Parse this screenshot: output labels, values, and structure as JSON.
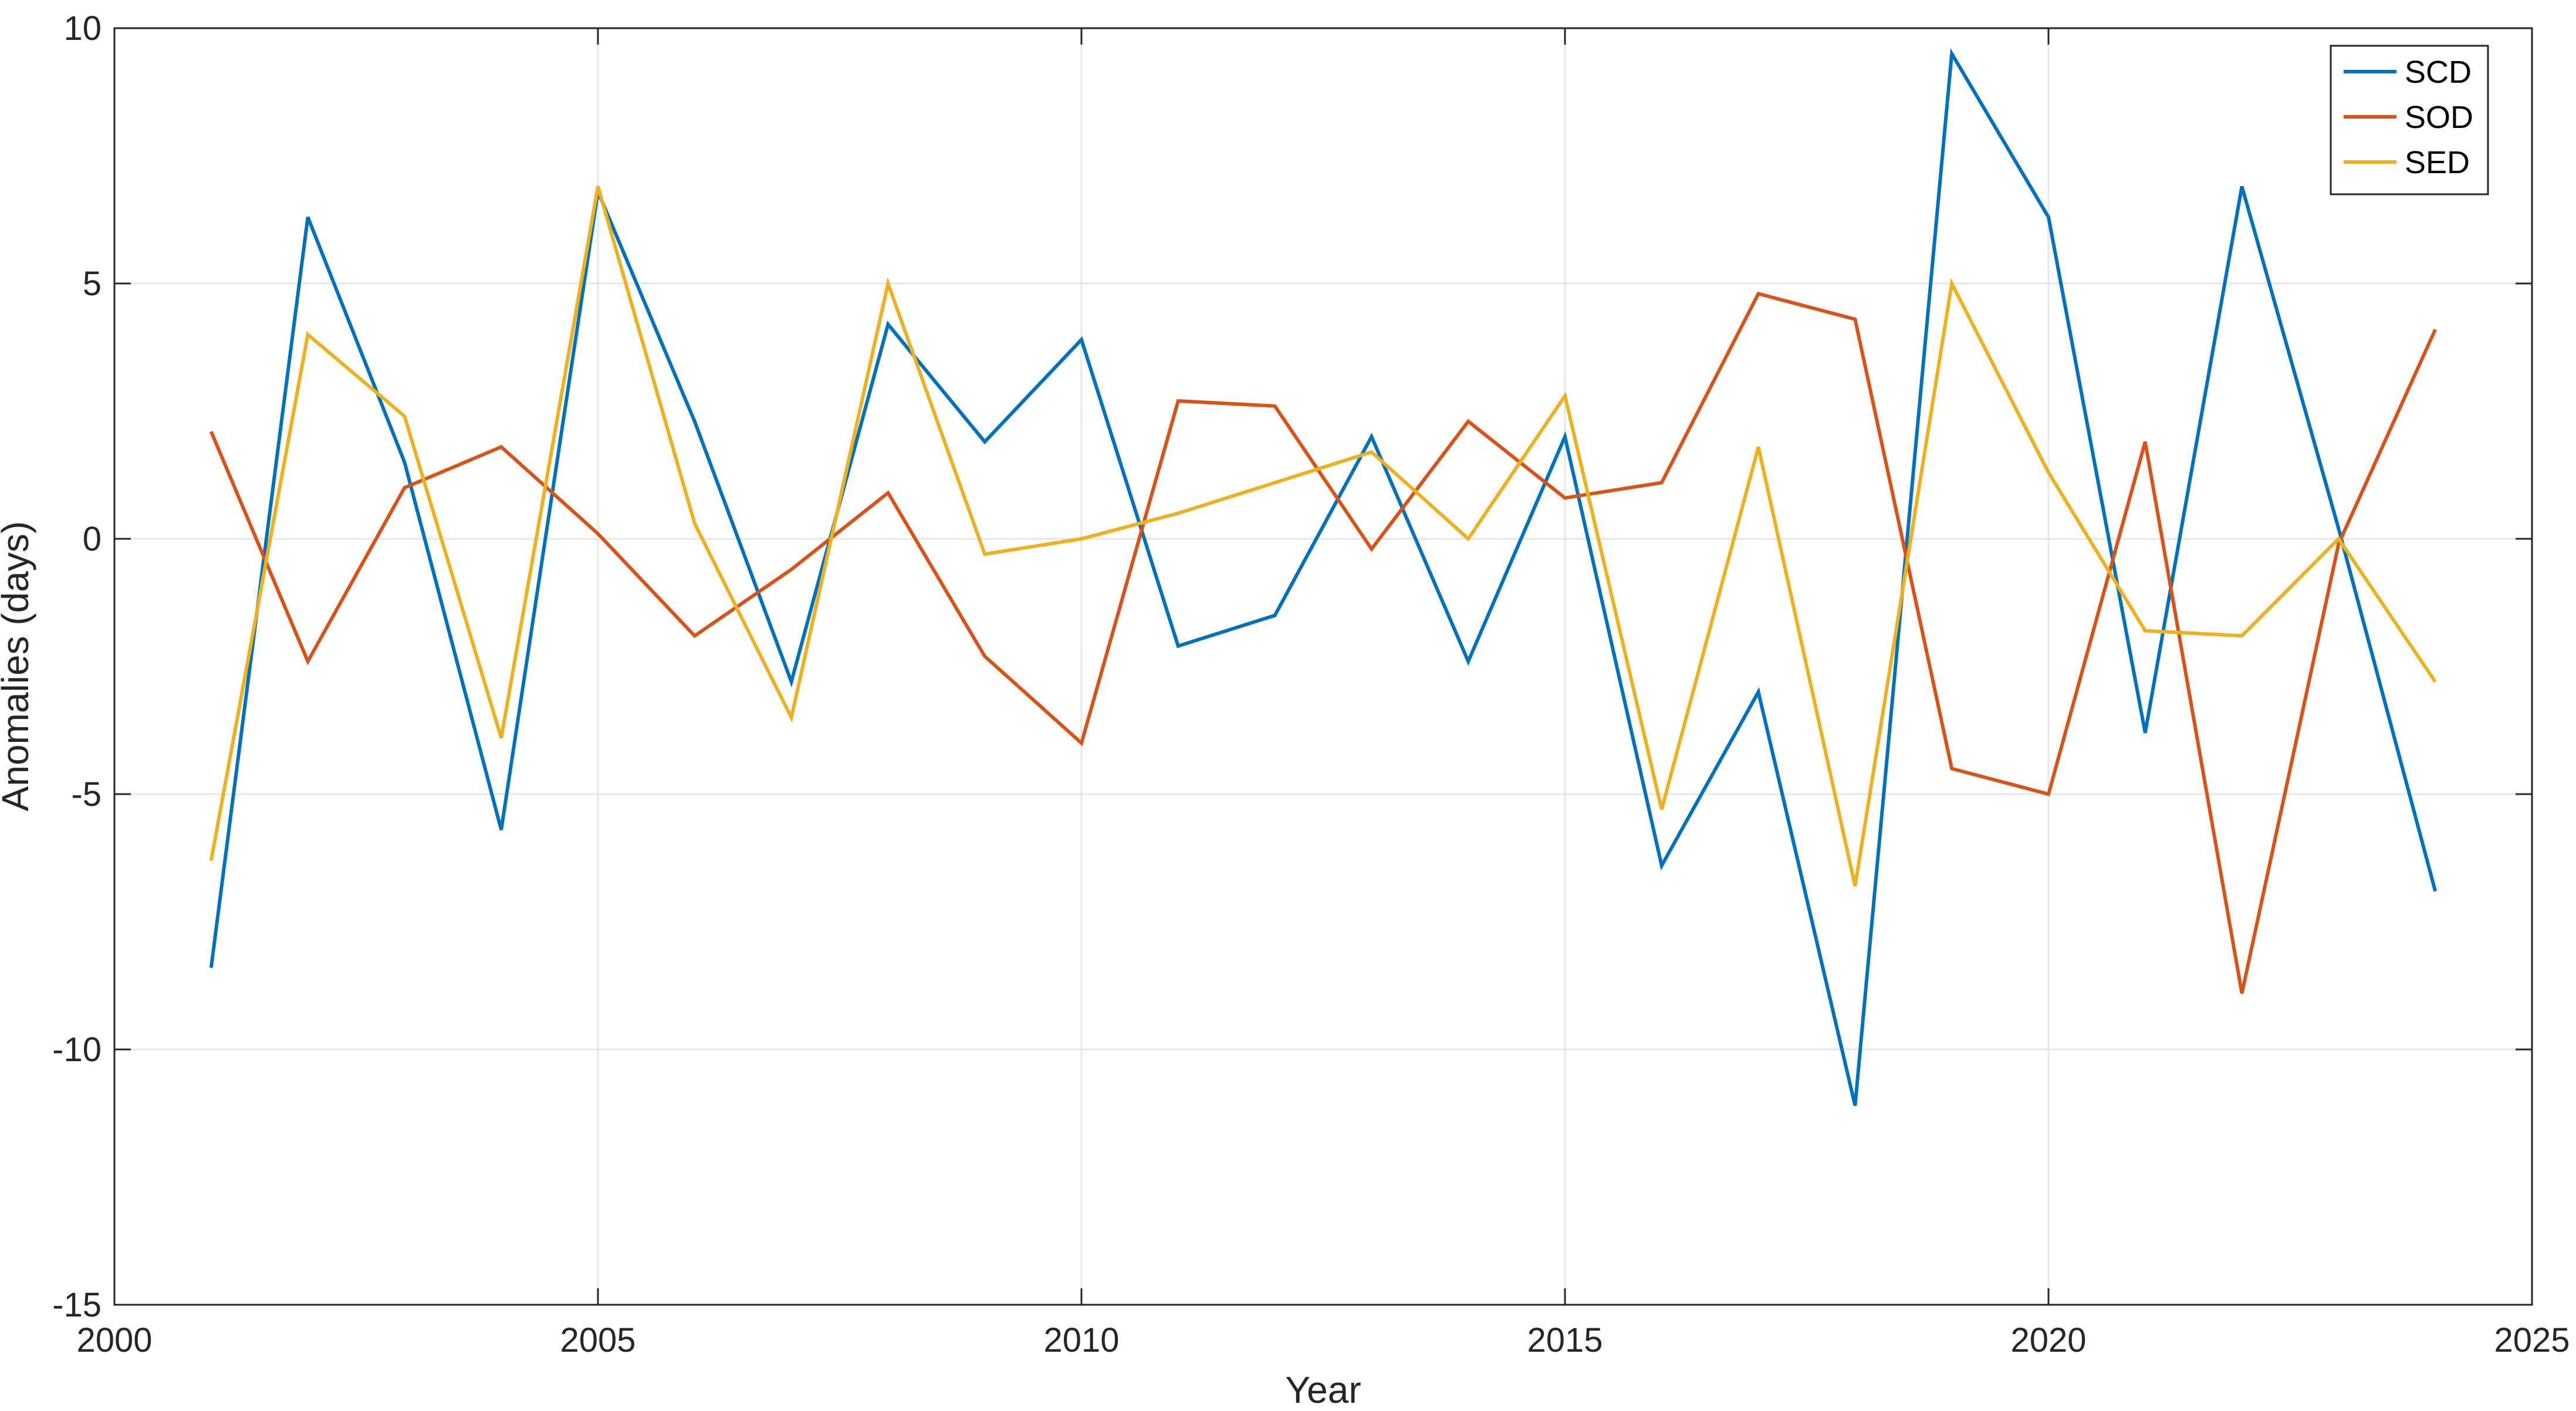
{
  "chart_data": {
    "type": "line",
    "xlabel": "Year",
    "ylabel": "Anomalies (days)",
    "xlim": [
      2000,
      2025
    ],
    "ylim": [
      -15,
      10
    ],
    "xticks": [
      2000,
      2005,
      2010,
      2015,
      2020,
      2025
    ],
    "yticks": [
      -15,
      -10,
      -5,
      0,
      5,
      10
    ],
    "grid": true,
    "legend_position": "top-right",
    "x": [
      2001,
      2002,
      2003,
      2004,
      2005,
      2006,
      2007,
      2008,
      2009,
      2010,
      2011,
      2012,
      2013,
      2014,
      2015,
      2016,
      2017,
      2018,
      2019,
      2020,
      2021,
      2022,
      2023,
      2024
    ],
    "series": [
      {
        "name": "SCD",
        "color": "#0072BD",
        "values": [
          -8.4,
          6.3,
          1.5,
          -5.7,
          6.8,
          2.3,
          -2.8,
          4.2,
          1.9,
          3.9,
          -2.1,
          -1.5,
          2.0,
          -2.4,
          2.0,
          -6.4,
          -3.0,
          -11.1,
          9.5,
          6.3,
          -3.8,
          6.9,
          0.2,
          -6.9
        ]
      },
      {
        "name": "SOD",
        "color": "#D95319",
        "values": [
          2.1,
          -2.4,
          1.0,
          1.8,
          0.1,
          -1.9,
          -0.6,
          0.9,
          -2.3,
          -4.0,
          2.7,
          2.6,
          -0.2,
          2.3,
          0.8,
          1.1,
          4.8,
          4.3,
          -4.5,
          -5.0,
          1.9,
          -8.9,
          -0.1,
          4.1
        ]
      },
      {
        "name": "SED",
        "color": "#EDB120",
        "values": [
          -6.3,
          4.0,
          2.4,
          -3.9,
          6.9,
          0.3,
          -3.5,
          5.0,
          -0.3,
          0.0,
          0.5,
          1.1,
          1.7,
          0.0,
          2.8,
          -5.3,
          1.8,
          -6.8,
          5.0,
          1.3,
          -1.8,
          -1.9,
          0.0,
          -2.8
        ]
      }
    ]
  }
}
